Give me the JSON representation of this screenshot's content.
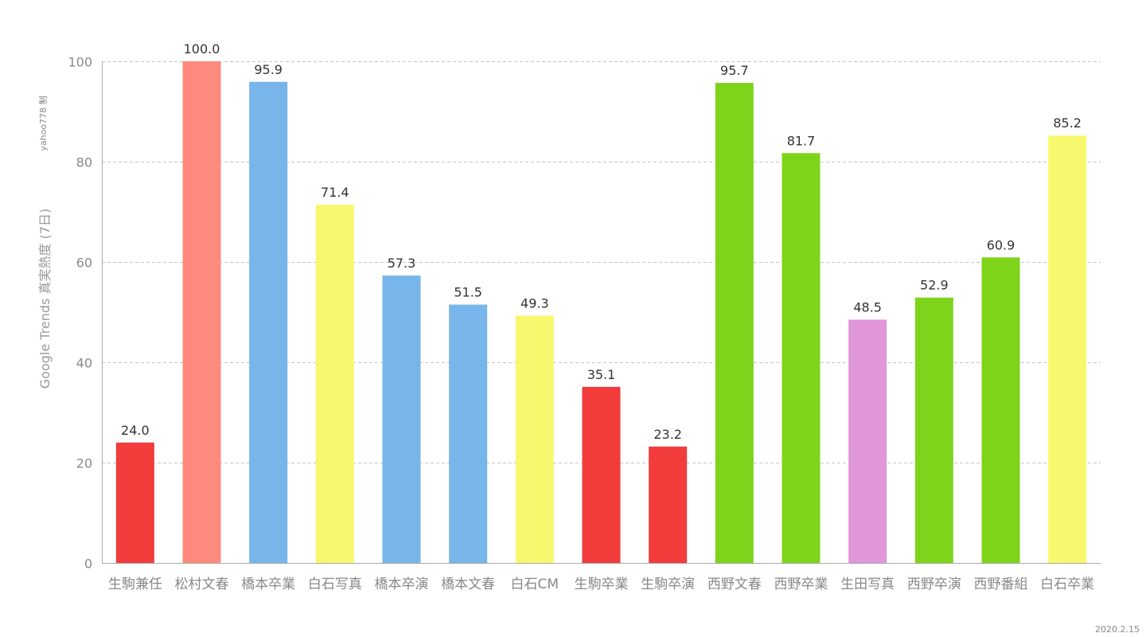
{
  "chart_data": {
    "type": "bar",
    "title": "",
    "xlabel": "",
    "ylabel": "Google Trends 真実熱度 (7日)",
    "ylim": [
      0,
      100
    ],
    "yticks": [
      0,
      20,
      40,
      60,
      80,
      100
    ],
    "grid": true,
    "categories": [
      "生駒兼任",
      "松村文春",
      "橋本卒業",
      "白石写真",
      "橋本卒演",
      "橋本文春",
      "白石CM",
      "生駒卒業",
      "生駒卒演",
      "西野文春",
      "西野卒業",
      "生田写真",
      "西野卒演",
      "西野番組",
      "白石卒業"
    ],
    "values": [
      24.0,
      100.0,
      95.9,
      71.4,
      57.3,
      51.5,
      49.3,
      35.1,
      23.2,
      95.7,
      81.7,
      48.5,
      52.9,
      60.9,
      85.2
    ],
    "colors": [
      "#f23b3b",
      "#fd8a7c",
      "#77b5ea",
      "#f7f86d",
      "#77b5ea",
      "#77b5ea",
      "#f7f86d",
      "#f23b3b",
      "#f23b3b",
      "#7dd41a",
      "#7dd41a",
      "#e096d8",
      "#7dd41a",
      "#7dd41a",
      "#f7f86d"
    ],
    "watermark": "yahoo778 制",
    "date": "2020.2.15"
  }
}
